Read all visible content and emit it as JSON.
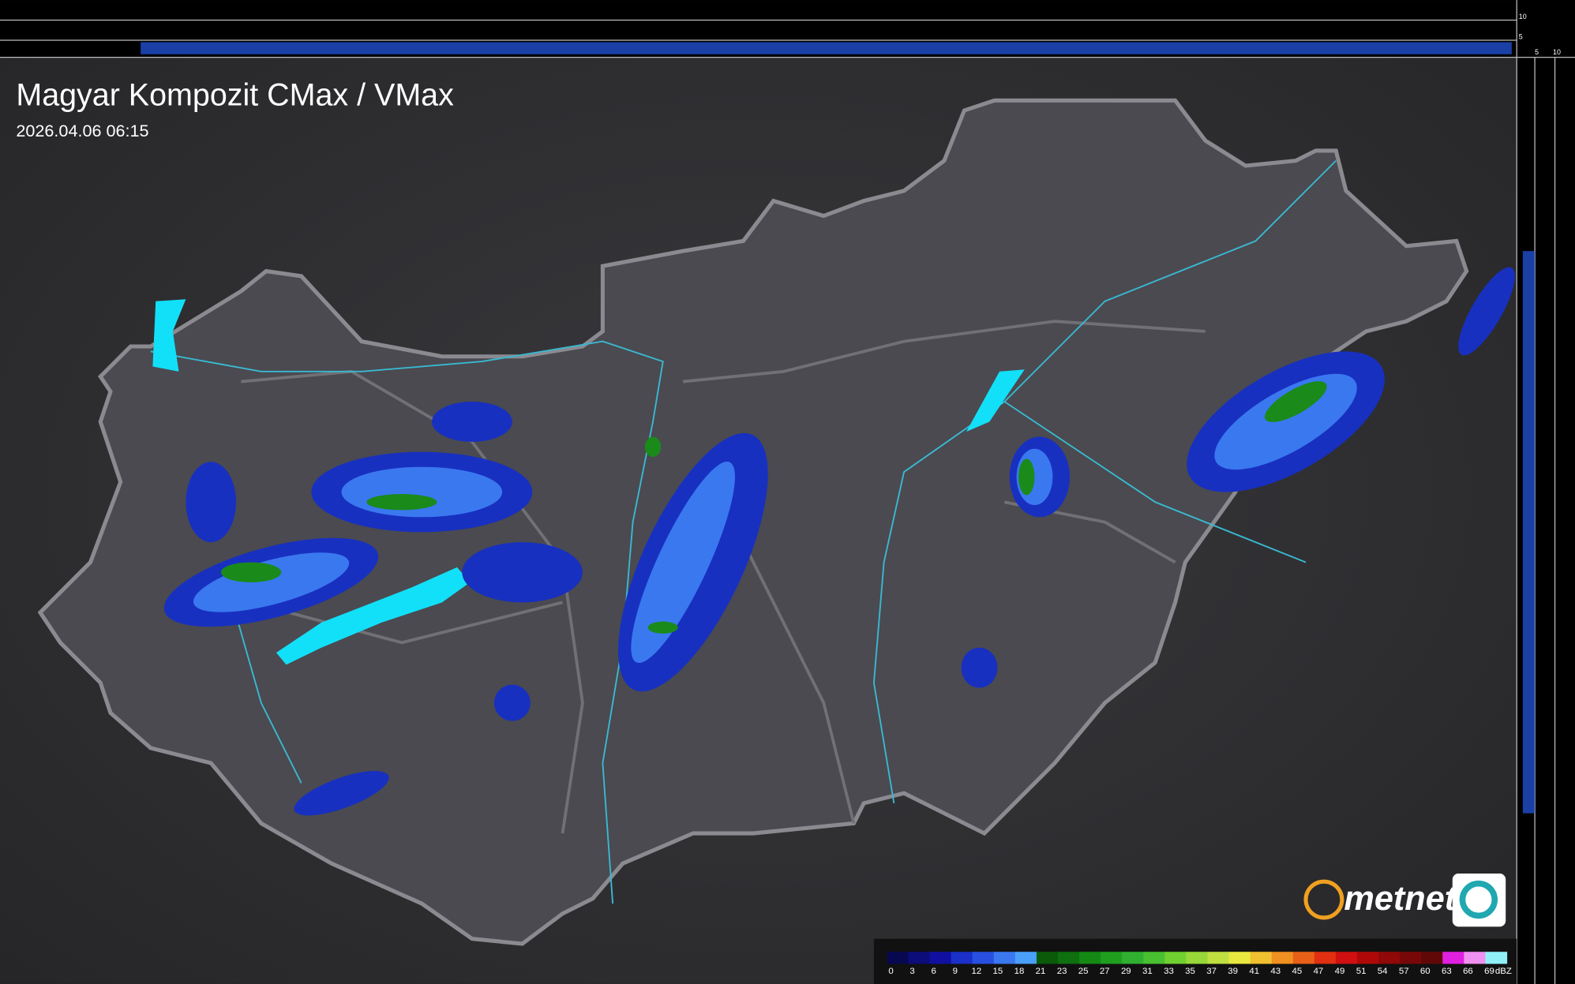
{
  "header": {
    "title": "Magyar Kompozit CMax / VMax",
    "timestamp": "2026.04.06 06:15"
  },
  "profile_axis": {
    "top_labels": [
      "10",
      "5"
    ],
    "side_labels": [
      "5",
      "10"
    ]
  },
  "logo": {
    "text": "metnet"
  },
  "legend": {
    "labels": [
      "0",
      "3",
      "6",
      "9",
      "12",
      "15",
      "18",
      "21",
      "23",
      "25",
      "27",
      "29",
      "31",
      "33",
      "35",
      "37",
      "39",
      "41",
      "43",
      "45",
      "47",
      "49",
      "51",
      "54",
      "57",
      "60",
      "63",
      "66",
      "69"
    ],
    "colors": [
      "#080850",
      "#0c0c7a",
      "#1010a0",
      "#1a30c8",
      "#2850e0",
      "#3a78f0",
      "#4aa0f8",
      "#0a5a0a",
      "#0e700e",
      "#148a14",
      "#1ea01e",
      "#30b030",
      "#48c030",
      "#70d030",
      "#98d838",
      "#c0e040",
      "#e8e840",
      "#f0c030",
      "#f09020",
      "#e86018",
      "#e03010",
      "#d01010",
      "#b00808",
      "#900808",
      "#780808",
      "#600808",
      "#e020e0",
      "#f090f0",
      "#90f0f8"
    ],
    "unit": "dBZ"
  }
}
